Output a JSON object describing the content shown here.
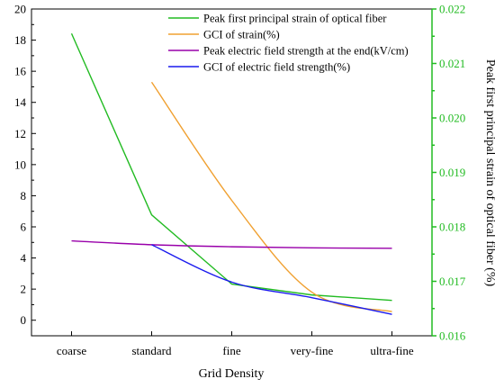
{
  "chart_data": {
    "type": "line",
    "categories": [
      "coarse",
      "standard",
      "fine",
      "very-fine",
      "ultra-fine"
    ],
    "xlabel": "Grid Density",
    "ylabel_right": "Peak first principal strain of optical fiber (%)",
    "ylim_left": [
      -1,
      20
    ],
    "yticks_left": [
      0,
      2,
      4,
      6,
      8,
      10,
      12,
      14,
      16,
      18,
      20
    ],
    "ylim_right": [
      0.016,
      0.022
    ],
    "yticks_right": [
      "0.016",
      "0.017",
      "0.018",
      "0.019",
      "0.020",
      "0.021",
      "0.022"
    ],
    "legend_position": "top-right",
    "series": [
      {
        "name": "Peak first principal strain of optical fiber",
        "axis": "right",
        "color": "#22bb22",
        "smooth": false,
        "x": [
          "coarse",
          "standard",
          "fine",
          "very-fine",
          "ultra-fine"
        ],
        "values": [
          0.02155,
          0.01822,
          0.01695,
          0.01675,
          0.01665
        ]
      },
      {
        "name": "GCI of strain(%)",
        "axis": "left",
        "color": "#f0a030",
        "smooth": true,
        "x": [
          "standard",
          "fine",
          "very-fine",
          "ultra-fine"
        ],
        "values": [
          15.3,
          7.7,
          1.8,
          0.55
        ]
      },
      {
        "name": "Peak electric field strength at the end(kV/cm)",
        "axis": "left",
        "color": "#9900aa",
        "smooth": true,
        "x": [
          "coarse",
          "standard",
          "fine",
          "very-fine",
          "ultra-fine"
        ],
        "values": [
          5.1,
          4.85,
          4.72,
          4.65,
          4.62
        ]
      },
      {
        "name": "GCI of electric field strength(%)",
        "axis": "left",
        "color": "#1a1aee",
        "smooth": true,
        "x": [
          "standard",
          "fine",
          "very-fine",
          "ultra-fine"
        ],
        "values": [
          4.85,
          2.45,
          1.45,
          0.38
        ]
      }
    ]
  }
}
